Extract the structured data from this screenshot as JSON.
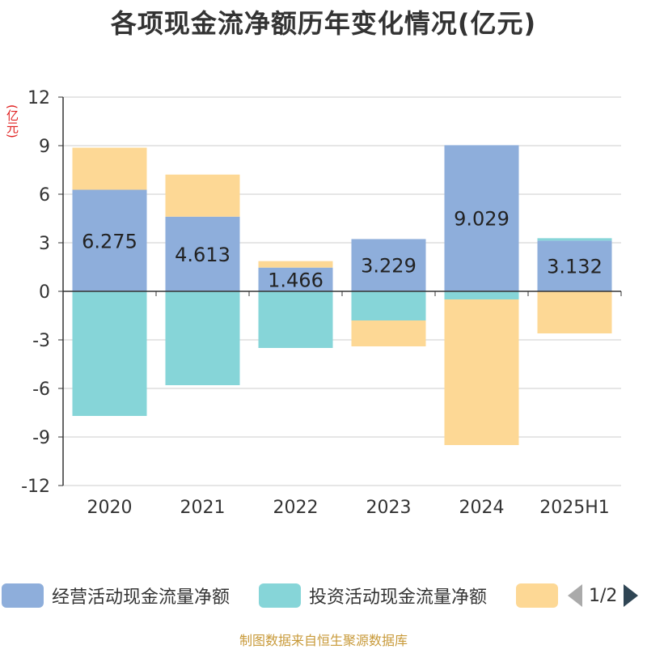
{
  "title": "各项现金流净额历年变化情况(亿元)",
  "y_unit": "(亿元)",
  "source": "制图数据来自恒生聚源数据库",
  "legend": {
    "items": [
      {
        "label": "经营活动现金流量净额",
        "color": "#8eaedb"
      },
      {
        "label": "投资活动现金流量净额",
        "color": "#86d5d8"
      },
      {
        "label": "",
        "color": "#fdd895"
      }
    ],
    "page": "1/2"
  },
  "chart_data": {
    "type": "bar",
    "stacked": true,
    "categories": [
      "2020",
      "2021",
      "2022",
      "2023",
      "2024",
      "2025H1"
    ],
    "series": [
      {
        "name": "经营活动现金流量净额",
        "color": "#8eaedb",
        "values": [
          6.275,
          4.613,
          1.466,
          3.229,
          9.029,
          3.132
        ],
        "labels": [
          "6.275",
          "4.613",
          "1.466",
          "3.229",
          "9.029",
          "3.132"
        ]
      },
      {
        "name": "投资活动现金流量净额",
        "color": "#86d5d8",
        "values": [
          -7.7,
          -5.8,
          -3.5,
          -1.8,
          -0.5,
          0.15
        ]
      },
      {
        "color": "#fdd895",
        "values": [
          2.6,
          2.6,
          0.4,
          -1.6,
          -9.0,
          -2.6
        ]
      }
    ],
    "ylim": [
      -12,
      12
    ],
    "yticks": [
      12,
      9,
      6,
      3,
      0,
      -3,
      -6,
      -9,
      -12
    ],
    "grid": true,
    "legend_position": "bottom"
  }
}
